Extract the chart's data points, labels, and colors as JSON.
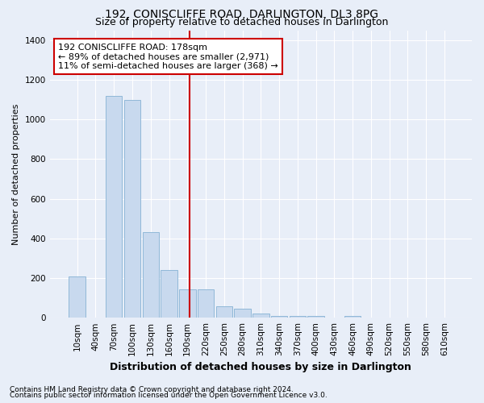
{
  "title": "192, CONISCLIFFE ROAD, DARLINGTON, DL3 8PG",
  "subtitle": "Size of property relative to detached houses in Darlington",
  "xlabel": "Distribution of detached houses by size in Darlington",
  "ylabel": "Number of detached properties",
  "footnote1": "Contains HM Land Registry data © Crown copyright and database right 2024.",
  "footnote2": "Contains public sector information licensed under the Open Government Licence v3.0.",
  "bar_color": "#c8d9ee",
  "bar_edge_color": "#90b8d8",
  "background_color": "#e8eef8",
  "vline_color": "#cc0000",
  "annotation_text": "192 CONISCLIFFE ROAD: 178sqm\n← 89% of detached houses are smaller (2,971)\n11% of semi-detached houses are larger (368) →",
  "annotation_box_color": "#ffffff",
  "annotation_border_color": "#cc0000",
  "categories": [
    "10sqm",
    "40sqm",
    "70sqm",
    "100sqm",
    "130sqm",
    "160sqm",
    "190sqm",
    "220sqm",
    "250sqm",
    "280sqm",
    "310sqm",
    "340sqm",
    "370sqm",
    "400sqm",
    "430sqm",
    "460sqm",
    "490sqm",
    "520sqm",
    "550sqm",
    "580sqm",
    "610sqm"
  ],
  "values": [
    210,
    0,
    1120,
    1100,
    430,
    240,
    143,
    143,
    60,
    45,
    20,
    10,
    10,
    10,
    0,
    10,
    0,
    0,
    0,
    0,
    0
  ],
  "ylim": [
    0,
    1450
  ],
  "yticks": [
    0,
    200,
    400,
    600,
    800,
    1000,
    1200,
    1400
  ],
  "grid_color": "#ffffff",
  "title_fontsize": 10,
  "subtitle_fontsize": 9,
  "xlabel_fontsize": 9,
  "ylabel_fontsize": 8,
  "tick_fontsize": 7.5,
  "annotation_fontsize": 8,
  "footnote_fontsize": 6.5
}
